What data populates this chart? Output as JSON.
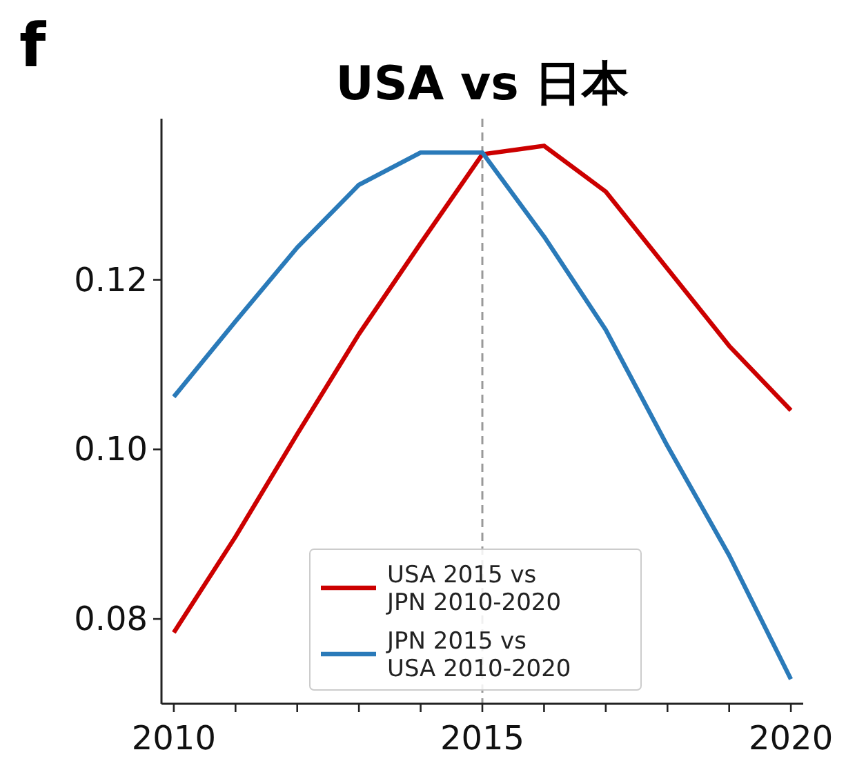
{
  "chart_data": {
    "type": "line",
    "title": "USA vs 日本",
    "annotations": [
      "f"
    ],
    "x": [
      2010,
      2011,
      2012,
      2013,
      2014,
      2015,
      2016,
      2017,
      2018,
      2019,
      2020
    ],
    "series": [
      {
        "name": "USA 2015 vs\nJPN 2010-2020",
        "color": "#cc0000",
        "values": [
          0.0784,
          0.0897,
          0.1018,
          0.1136,
          0.1243,
          0.1348,
          0.1358,
          0.1304,
          0.1213,
          0.1122,
          0.1046
        ]
      },
      {
        "name": "JPN 2015 vs\nUSA 2010-2020",
        "color": "#2a7ab9",
        "values": [
          0.1062,
          0.1151,
          0.1238,
          0.1312,
          0.135,
          0.135,
          0.1251,
          0.1141,
          0.1004,
          0.0875,
          0.0729
        ]
      }
    ],
    "xlim": [
      2009.8,
      2020.2
    ],
    "ylim": [
      0.07,
      0.139
    ],
    "xticks": [
      2010,
      {
        "value": 2011,
        "label": null
      },
      {
        "value": 2012,
        "label": null
      },
      {
        "value": 2013,
        "label": null
      },
      {
        "value": 2014,
        "label": null
      },
      2015,
      {
        "value": 2016,
        "label": null
      },
      {
        "value": 2017,
        "label": null
      },
      {
        "value": 2018,
        "label": null
      },
      {
        "value": 2019,
        "label": null
      },
      2020
    ],
    "yticks": [
      {
        "value": 0.08,
        "label": "0.08"
      },
      {
        "value": 0.1,
        "label": "0.10"
      },
      {
        "value": 0.12,
        "label": "0.12"
      }
    ],
    "ref_lines": [
      {
        "axis": "x",
        "value": 2015,
        "color": "#999999",
        "line_style": "dashed"
      }
    ],
    "legend": "bottom center",
    "grid": false,
    "marker": "none",
    "line_style": "solid"
  }
}
